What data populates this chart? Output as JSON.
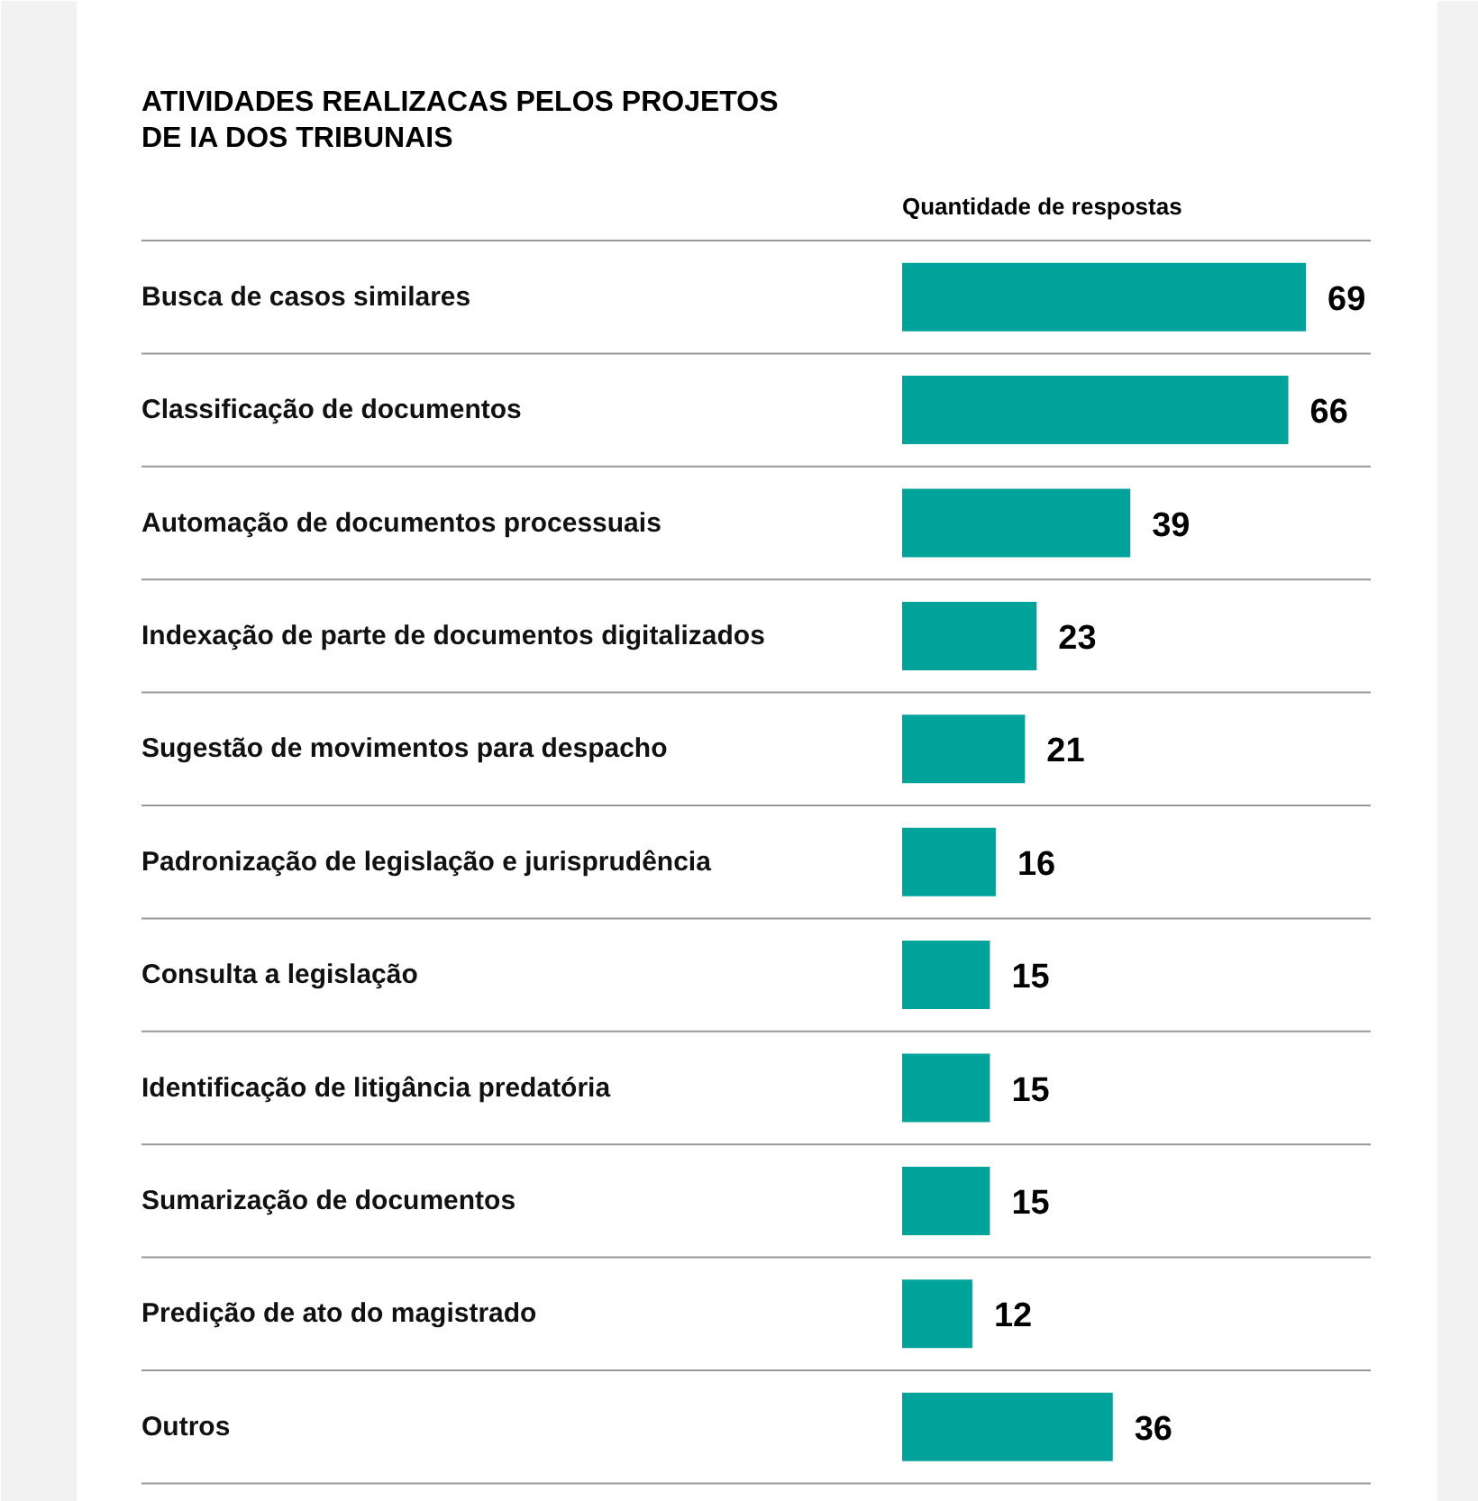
{
  "chart_data": {
    "type": "bar",
    "orientation": "horizontal",
    "relative": false,
    "title": "ATIVIDADES REALIZACAS PELOS PROJETOS\nDE IA DOS TRIBUNAIS",
    "xlabel": "Quantidade de respostas",
    "categories": [
      "Busca de casos similares",
      "Classificação de documentos",
      "Automação de documentos processuais",
      "Indexação de parte de documentos digitalizados",
      "Sugestão de movimentos para despacho",
      "Padronização de legislação e jurisprudência",
      "Consulta a legislação",
      "Identificação de litigância predatória",
      "Sumarização de documentos",
      "Predição de ato do magistrado",
      "Outros"
    ],
    "values": [
      69,
      66,
      39,
      23,
      21,
      16,
      15,
      15,
      15,
      12,
      36
    ],
    "color": "#00a39a",
    "data_labels": true,
    "grid": "y"
  }
}
